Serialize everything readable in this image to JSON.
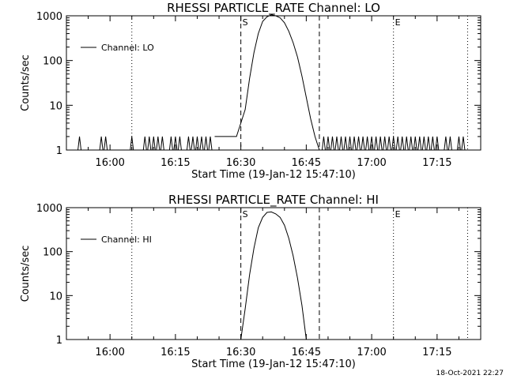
{
  "timestamp": "18-Oct-2021 22:27",
  "chart_data": [
    {
      "type": "line",
      "title": "RHESSI PARTICLE_RATE Channel: LO",
      "xlabel": "Start Time (19-Jan-12 15:47:10)",
      "ylabel": "Counts/sec",
      "y_scale": "log",
      "ylim": [
        1,
        1000
      ],
      "xlim": [
        "15:50",
        "17:25"
      ],
      "x_ticks": [
        "16:00",
        "16:15",
        "16:30",
        "16:45",
        "17:00",
        "17:15"
      ],
      "y_ticks": [
        "1",
        "10",
        "100",
        "1000"
      ],
      "legend": {
        "position": "top-left",
        "entries": [
          "Channel: LO"
        ]
      },
      "markers": [
        {
          "label": "S",
          "time": "16:30",
          "style": "dashed"
        },
        {
          "label": "",
          "time": "16:48",
          "style": "dashed"
        },
        {
          "label": "",
          "time": "16:05",
          "style": "dotted"
        },
        {
          "label": "E",
          "time": "17:05",
          "style": "dotted"
        },
        {
          "label": "",
          "time": "17:22",
          "style": "dotted"
        }
      ],
      "series": [
        {
          "name": "Channel: LO",
          "points": [
            [
              "16:24",
              2
            ],
            [
              "16:29",
              2
            ],
            [
              "16:30",
              4
            ],
            [
              "16:31",
              8
            ],
            [
              "16:32",
              40
            ],
            [
              "16:33",
              150
            ],
            [
              "16:34",
              400
            ],
            [
              "16:35",
              750
            ],
            [
              "16:36",
              950
            ],
            [
              "16:37",
              1050
            ],
            [
              "16:38",
              1000
            ],
            [
              "16:39",
              900
            ],
            [
              "16:40",
              700
            ],
            [
              "16:41",
              450
            ],
            [
              "16:42",
              250
            ],
            [
              "16:43",
              120
            ],
            [
              "16:44",
              45
            ],
            [
              "16:45",
              15
            ],
            [
              "16:46",
              5
            ],
            [
              "16:47",
              2
            ],
            [
              "16:48",
              1
            ]
          ],
          "noise_spikes": [
            "15:53",
            "15:58",
            "15:59",
            "16:05",
            "16:08",
            "16:09",
            "16:10",
            "16:11",
            "16:12",
            "16:14",
            "16:15",
            "16:16",
            "16:18",
            "16:19",
            "16:20",
            "16:21",
            "16:22",
            "16:23",
            "16:49",
            "16:50",
            "16:51",
            "16:52",
            "16:53",
            "16:54",
            "16:55",
            "16:56",
            "16:57",
            "16:58",
            "16:59",
            "17:00",
            "17:01",
            "17:02",
            "17:03",
            "17:04",
            "17:05",
            "17:06",
            "17:07",
            "17:08",
            "17:09",
            "17:10",
            "17:11",
            "17:12",
            "17:13",
            "17:14",
            "17:15",
            "17:17",
            "17:18",
            "17:20",
            "17:21"
          ]
        }
      ]
    },
    {
      "type": "line",
      "title": "RHESSI PARTICLE_RATE Channel: HI",
      "xlabel": "Start Time (19-Jan-12 15:47:10)",
      "ylabel": "Counts/sec",
      "y_scale": "log",
      "ylim": [
        1,
        1000
      ],
      "xlim": [
        "15:50",
        "17:25"
      ],
      "x_ticks": [
        "16:00",
        "16:15",
        "16:30",
        "16:45",
        "17:00",
        "17:15"
      ],
      "y_ticks": [
        "1",
        "10",
        "100",
        "1000"
      ],
      "legend": {
        "position": "top-left",
        "entries": [
          "Channel: HI"
        ]
      },
      "markers": [
        {
          "label": "S",
          "time": "16:30",
          "style": "dashed"
        },
        {
          "label": "",
          "time": "16:48",
          "style": "dashed"
        },
        {
          "label": "",
          "time": "16:05",
          "style": "dotted"
        },
        {
          "label": "E",
          "time": "17:05",
          "style": "dotted"
        },
        {
          "label": "",
          "time": "17:22",
          "style": "dotted"
        }
      ],
      "series": [
        {
          "name": "Channel: HI",
          "points": [
            [
              "16:30",
              1
            ],
            [
              "16:31",
              5
            ],
            [
              "16:32",
              30
            ],
            [
              "16:33",
              120
            ],
            [
              "16:34",
              350
            ],
            [
              "16:35",
              600
            ],
            [
              "16:36",
              780
            ],
            [
              "16:37",
              800
            ],
            [
              "16:38",
              720
            ],
            [
              "16:39",
              600
            ],
            [
              "16:40",
              400
            ],
            [
              "16:41",
              200
            ],
            [
              "16:42",
              80
            ],
            [
              "16:43",
              25
            ],
            [
              "16:44",
              6
            ],
            [
              "16:45",
              1
            ]
          ],
          "noise_spikes": []
        }
      ]
    }
  ]
}
